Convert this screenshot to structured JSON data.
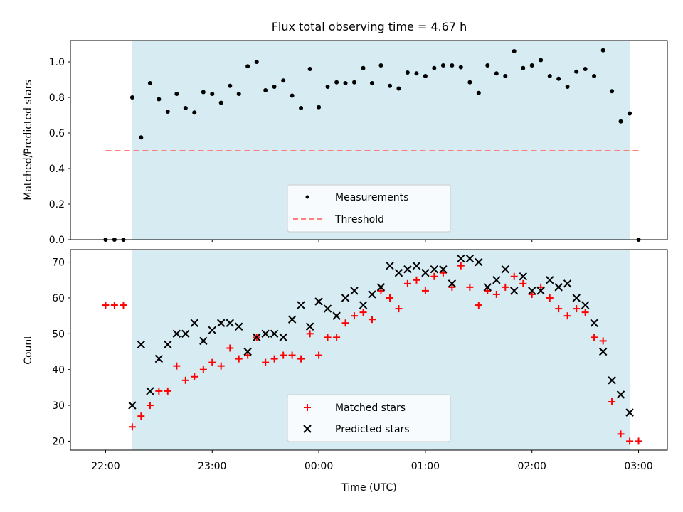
{
  "title": "Flux total observing time = 4.67 h",
  "xlabel": "Time (UTC)",
  "x_ticks": [
    "22:00",
    "23:00",
    "00:00",
    "01:00",
    "02:00",
    "03:00"
  ],
  "colors": {
    "shade": "#add8e6",
    "threshold": "#ff7f7f",
    "matched": "#ff0000",
    "predicted": "#000000",
    "measurements": "#000000"
  },
  "chart_data": [
    {
      "type": "scatter",
      "ylabel": "Matched/Predicted stars",
      "ylim": [
        0,
        1.12
      ],
      "y_ticks": [
        "0.0",
        "0.2",
        "0.4",
        "0.6",
        "0.8",
        "1.0"
      ],
      "x_range_hours": [
        21.67,
        3.27
      ],
      "shaded_interval_hours": [
        22.25,
        2.92
      ],
      "legend": {
        "placement": "lower-center",
        "entries": [
          "Measurements",
          "Threshold"
        ]
      },
      "threshold": {
        "name": "Threshold",
        "value": 0.5,
        "x_from": 22.0,
        "x_to": 3.0
      },
      "series": [
        {
          "name": "Measurements",
          "x": [
            22.0,
            22.083,
            22.167,
            22.25,
            22.333,
            22.417,
            22.5,
            22.583,
            22.667,
            22.75,
            22.833,
            22.917,
            23.0,
            23.083,
            23.167,
            23.25,
            23.333,
            23.417,
            23.5,
            23.583,
            23.667,
            23.75,
            23.833,
            23.917,
            0.0,
            0.083,
            0.167,
            0.25,
            0.333,
            0.417,
            0.5,
            0.583,
            0.667,
            0.75,
            0.833,
            0.917,
            1.0,
            1.083,
            1.167,
            1.25,
            1.333,
            1.417,
            1.5,
            1.583,
            1.667,
            1.75,
            1.833,
            1.917,
            2.0,
            2.083,
            2.167,
            2.25,
            2.333,
            2.417,
            2.5,
            2.583,
            2.667,
            2.75,
            2.833,
            2.917,
            3.0
          ],
          "y": [
            0.0,
            0.0,
            0.0,
            0.8,
            0.575,
            0.88,
            0.79,
            0.72,
            0.82,
            0.74,
            0.715,
            0.83,
            0.82,
            0.77,
            0.865,
            0.82,
            0.975,
            1.0,
            0.84,
            0.86,
            0.895,
            0.81,
            0.74,
            0.96,
            0.745,
            0.86,
            0.885,
            0.88,
            0.885,
            0.965,
            0.88,
            0.98,
            0.865,
            0.85,
            0.94,
            0.935,
            0.92,
            0.965,
            0.98,
            0.98,
            0.97,
            0.885,
            0.825,
            0.98,
            0.935,
            0.92,
            1.06,
            0.965,
            0.98,
            1.01,
            0.92,
            0.905,
            0.86,
            0.945,
            0.96,
            0.92,
            1.065,
            0.835,
            0.665,
            0.71,
            0.0
          ]
        }
      ]
    },
    {
      "type": "scatter",
      "ylabel": "Count",
      "ylim": [
        17.5,
        73.5
      ],
      "y_ticks": [
        "20",
        "30",
        "40",
        "50",
        "60",
        "70"
      ],
      "x_range_hours": [
        21.67,
        3.27
      ],
      "shaded_interval_hours": [
        22.25,
        2.92
      ],
      "legend": {
        "placement": "lower-center",
        "entries": [
          "Matched stars",
          "Predicted stars"
        ]
      },
      "series": [
        {
          "name": "Matched stars",
          "marker": "+",
          "x": [
            22.0,
            22.083,
            22.167,
            22.25,
            22.333,
            22.417,
            22.5,
            22.583,
            22.667,
            22.75,
            22.833,
            22.917,
            23.0,
            23.083,
            23.167,
            23.25,
            23.333,
            23.417,
            23.5,
            23.583,
            23.667,
            23.75,
            23.833,
            23.917,
            0.0,
            0.083,
            0.167,
            0.25,
            0.333,
            0.417,
            0.5,
            0.583,
            0.667,
            0.75,
            0.833,
            0.917,
            1.0,
            1.083,
            1.167,
            1.25,
            1.333,
            1.417,
            1.5,
            1.583,
            1.667,
            1.75,
            1.833,
            1.917,
            2.0,
            2.083,
            2.167,
            2.25,
            2.333,
            2.417,
            2.5,
            2.583,
            2.667,
            2.75,
            2.833,
            2.917,
            3.0
          ],
          "y": [
            58,
            58,
            58,
            24,
            27,
            30,
            34,
            34,
            41,
            37,
            38,
            40,
            42,
            41,
            46,
            43,
            44,
            49,
            42,
            43,
            44,
            44,
            43,
            50,
            44,
            49,
            49,
            53,
            55,
            56,
            54,
            62,
            60,
            57,
            64,
            65,
            62,
            66,
            67,
            63,
            69,
            63,
            58,
            62,
            61,
            63,
            66,
            64,
            61,
            63,
            60,
            57,
            55,
            57,
            56,
            49,
            48,
            31,
            22,
            20,
            20
          ]
        },
        {
          "name": "Predicted stars",
          "marker": "x",
          "x": [
            22.25,
            22.333,
            22.417,
            22.5,
            22.583,
            22.667,
            22.75,
            22.833,
            22.917,
            23.0,
            23.083,
            23.167,
            23.25,
            23.333,
            23.417,
            23.5,
            23.583,
            23.667,
            23.75,
            23.833,
            23.917,
            0.0,
            0.083,
            0.167,
            0.25,
            0.333,
            0.417,
            0.5,
            0.583,
            0.667,
            0.75,
            0.833,
            0.917,
            1.0,
            1.083,
            1.167,
            1.25,
            1.333,
            1.417,
            1.5,
            1.583,
            1.667,
            1.75,
            1.833,
            1.917,
            2.0,
            2.083,
            2.167,
            2.25,
            2.333,
            2.417,
            2.5,
            2.583,
            2.667,
            2.75,
            2.833,
            2.917
          ],
          "y": [
            30,
            47,
            34,
            43,
            47,
            50,
            50,
            53,
            48,
            51,
            53,
            53,
            52,
            45,
            49,
            50,
            50,
            49,
            54,
            58,
            52,
            59,
            57,
            55,
            60,
            62,
            58,
            61,
            63,
            69,
            67,
            68,
            69,
            67,
            68,
            68,
            64,
            71,
            71,
            70,
            63,
            65,
            68,
            62,
            66,
            62,
            62,
            65,
            63,
            64,
            60,
            58,
            53,
            45,
            37,
            33,
            28
          ]
        }
      ]
    }
  ]
}
